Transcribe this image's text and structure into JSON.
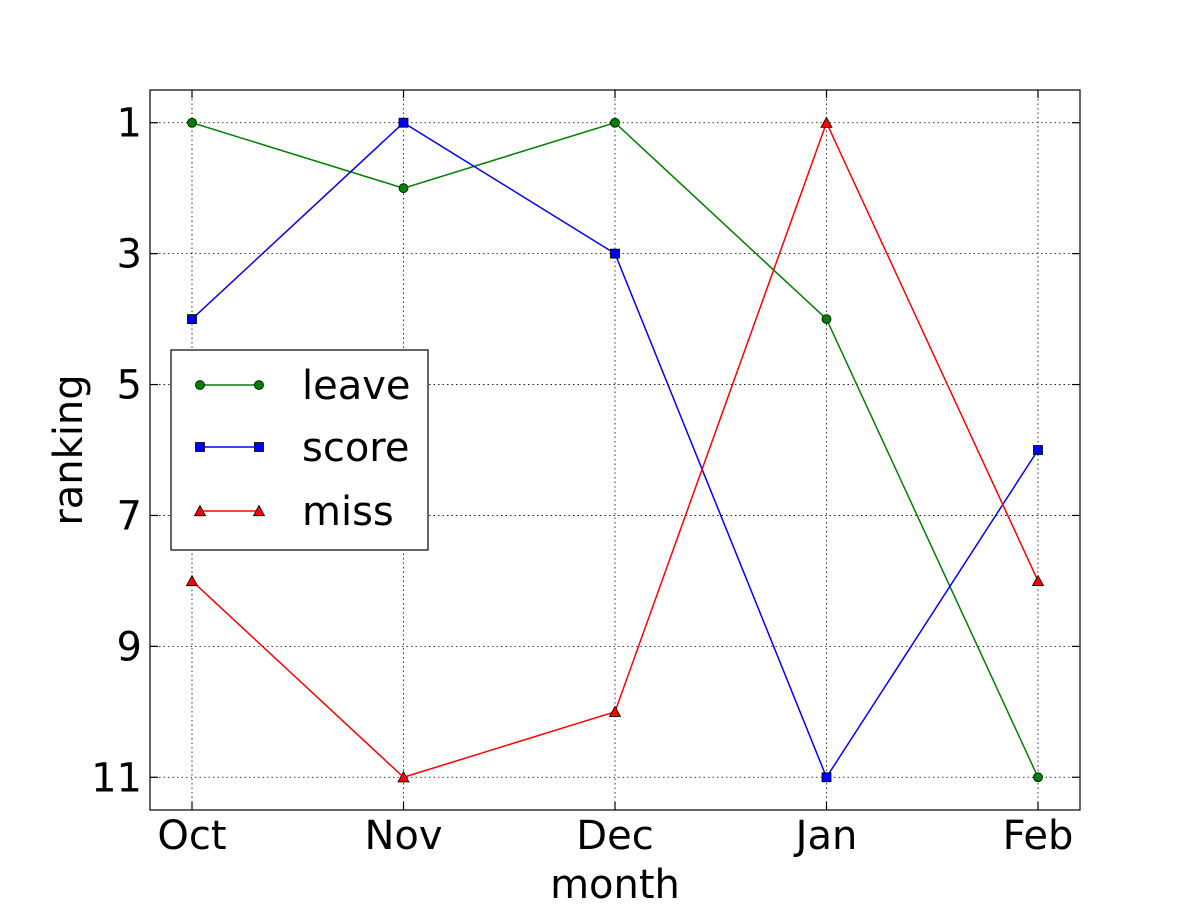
{
  "chart_data": {
    "type": "line",
    "title": "",
    "xlabel": "month",
    "ylabel": "ranking",
    "categories": [
      "Oct",
      "Nov",
      "Dec",
      "Jan",
      "Feb"
    ],
    "y_ticks": [
      1,
      3,
      5,
      7,
      9,
      11
    ],
    "ylim": [
      11.5,
      0.5
    ],
    "y_inverted": true,
    "grid": true,
    "legend_position": "center-left",
    "series": [
      {
        "name": "leave",
        "values": [
          1,
          2,
          1,
          4,
          11
        ],
        "color": "#008000",
        "marker": "circle"
      },
      {
        "name": "score",
        "values": [
          4,
          1,
          3,
          11,
          6
        ],
        "color": "#0000ff",
        "marker": "square"
      },
      {
        "name": "miss",
        "values": [
          8,
          11,
          10,
          1,
          8
        ],
        "color": "#ff0000",
        "marker": "triangle"
      }
    ]
  }
}
